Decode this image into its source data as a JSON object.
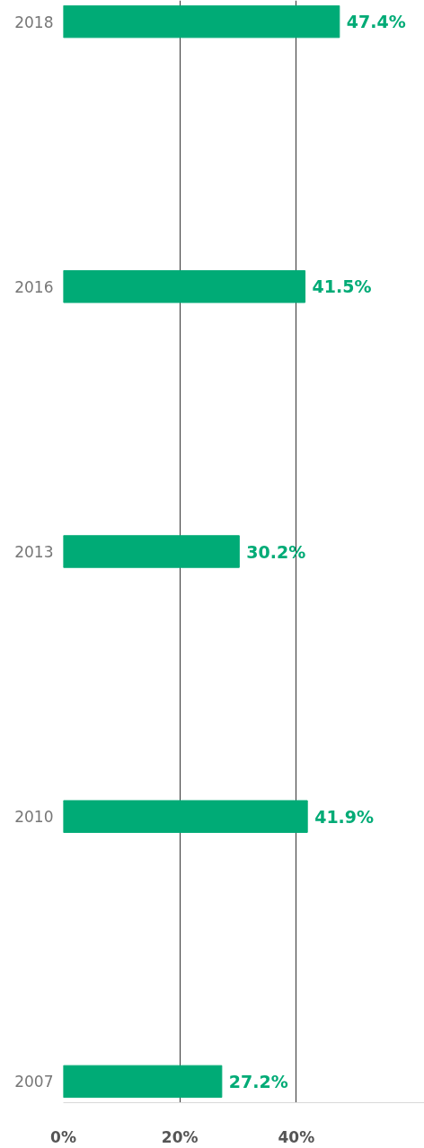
{
  "chart_data": {
    "type": "bar",
    "orientation": "horizontal",
    "categories": [
      "2018",
      "2016",
      "2013",
      "2010",
      "2007"
    ],
    "values": [
      47.4,
      41.5,
      30.2,
      41.9,
      27.2
    ],
    "value_labels": [
      "47.4%",
      "41.5%",
      "30.2%",
      "41.9%",
      "27.2%"
    ],
    "color": "#00ab76",
    "xlim": [
      0,
      62
    ],
    "xticks": [
      {
        "value": 0,
        "label": "0%"
      },
      {
        "value": 20,
        "label": "20%"
      },
      {
        "value": 40,
        "label": "40%"
      }
    ],
    "grid": "x"
  }
}
